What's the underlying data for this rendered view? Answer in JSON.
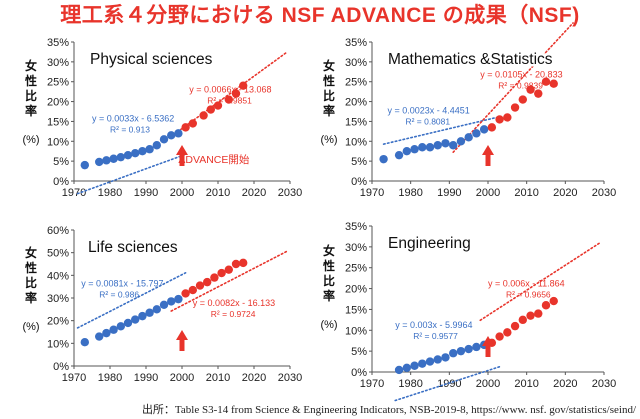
{
  "title": "理工系４分野における NSF ADVANCE の成果（NSF)",
  "source": "出所：Table S3-14 from Science & Engineering Indicators, NSB-2019-8, https://www. nsf. gov/statistics/seind/",
  "colors": {
    "title": "#e8342b",
    "blue": "#3a6fc4",
    "red": "#e8342b",
    "axis": "#555555"
  },
  "chart_data": [
    {
      "type": "scatter",
      "title": "Physical sciences",
      "ylabel": "女性比率 (%)",
      "xlim": [
        1970,
        2030
      ],
      "ylim": [
        0,
        35
      ],
      "xticks": [
        1970,
        1980,
        1990,
        2000,
        2010,
        2020,
        2030
      ],
      "yticks": [
        0,
        5,
        10,
        15,
        20,
        25,
        30,
        35
      ],
      "ytick_suffix": "%",
      "series": [
        {
          "color": "blue",
          "x": [
            1973,
            1977,
            1979,
            1981,
            1983,
            1985,
            1987,
            1989,
            1991,
            1993,
            1995,
            1997,
            1999
          ],
          "y": [
            4,
            4.8,
            5.2,
            5.6,
            6,
            6.5,
            7,
            7.5,
            8,
            9,
            10.5,
            11.5,
            12
          ]
        },
        {
          "color": "red",
          "x": [
            2001,
            2003,
            2006,
            2008,
            2010,
            2013,
            2015,
            2017
          ],
          "y": [
            13.5,
            14.5,
            16.5,
            18,
            19,
            20.5,
            22,
            24
          ]
        }
      ],
      "trendlines": [
        {
          "color": "blue",
          "slope": 0.0033,
          "intercept": -6.5362,
          "x": [
            1971,
            2001
          ]
        },
        {
          "color": "red",
          "slope": 0.0066,
          "intercept": -13.068,
          "x": [
            1997,
            2029
          ]
        }
      ],
      "equations": [
        {
          "color": "blue",
          "eq": "y = 0.0033x - 6.5362",
          "r2": "R² = 0.913",
          "at": [
            1975,
            15
          ]
        },
        {
          "color": "red",
          "eq": "y = 0.0066x - 13.068",
          "r2": "R² = 0.9851",
          "at": [
            2002,
            22.3
          ]
        }
      ],
      "arrow_year": 2000,
      "annotation": {
        "text": "ADVANCE開始",
        "at": [
          1999,
          4.5
        ]
      }
    },
    {
      "type": "scatter",
      "title": "Mathematics &Statistics",
      "ylabel": "女性比率 (%)",
      "xlim": [
        1970,
        2030
      ],
      "ylim": [
        0,
        35
      ],
      "xticks": [
        1970,
        1980,
        1990,
        2000,
        2010,
        2020,
        2030
      ],
      "yticks": [
        0,
        5,
        10,
        15,
        20,
        25,
        30,
        35
      ],
      "ytick_suffix": "%",
      "series": [
        {
          "color": "blue",
          "x": [
            1973,
            1977,
            1979,
            1981,
            1983,
            1985,
            1987,
            1989,
            1991,
            1993,
            1995,
            1997,
            1999
          ],
          "y": [
            5.5,
            6.5,
            7.5,
            8,
            8.5,
            8.5,
            9,
            9.5,
            9,
            10,
            11,
            12,
            13
          ]
        },
        {
          "color": "red",
          "x": [
            2001,
            2003,
            2005,
            2007,
            2009,
            2011,
            2013,
            2015,
            2017
          ],
          "y": [
            13.5,
            15.5,
            16,
            18.5,
            20.5,
            23,
            22,
            25,
            24.5
          ]
        }
      ],
      "trendlines": [
        {
          "color": "blue",
          "slope": 0.0023,
          "intercept": -4.4451,
          "x": [
            1973,
            2003
          ]
        },
        {
          "color": "red",
          "slope": 0.0105,
          "intercept": -20.833,
          "x": [
            1991,
            2022
          ]
        }
      ],
      "equations": [
        {
          "color": "blue",
          "eq": "y = 0.0023x - 4.4451",
          "r2": "R² = 0.8081",
          "at": [
            1974,
            17
          ]
        },
        {
          "color": "red",
          "eq": "y = 0.0105x - 20.833",
          "r2": "R² = 0.9839",
          "at": [
            1998,
            26
          ]
        }
      ],
      "arrow_year": 2000
    },
    {
      "type": "scatter",
      "title": "Life sciences",
      "ylabel": "女性比率 (%)",
      "xlim": [
        1970,
        2030
      ],
      "ylim": [
        0,
        60
      ],
      "xticks": [
        1970,
        1980,
        1990,
        2000,
        2010,
        2020,
        2030
      ],
      "yticks": [
        0,
        10,
        20,
        30,
        40,
        50,
        60
      ],
      "ytick_suffix": "%",
      "series": [
        {
          "color": "blue",
          "x": [
            1973,
            1977,
            1979,
            1981,
            1983,
            1985,
            1987,
            1989,
            1991,
            1993,
            1995,
            1997,
            1999
          ],
          "y": [
            10.5,
            13,
            14.5,
            16,
            17.5,
            19,
            20.5,
            22,
            23.5,
            25,
            27,
            28.5,
            29.5
          ]
        },
        {
          "color": "red",
          "x": [
            2001,
            2003,
            2005,
            2007,
            2009,
            2011,
            2013,
            2015,
            2017
          ],
          "y": [
            32,
            33.5,
            35.5,
            37,
            39,
            41,
            42.5,
            45,
            45.5
          ]
        }
      ],
      "trendlines": [
        {
          "color": "blue",
          "slope": 0.0081,
          "intercept": -15.797,
          "x": [
            1971,
            2001
          ]
        },
        {
          "color": "red",
          "slope": 0.0082,
          "intercept": -16.133,
          "x": [
            1997,
            2029
          ]
        }
      ],
      "equations": [
        {
          "color": "blue",
          "eq": "y = 0.0081x - 15.797",
          "r2": "R² = 0.986",
          "at": [
            1972,
            35
          ]
        },
        {
          "color": "red",
          "eq": "y = 0.0082x - 16.133",
          "r2": "R² = 0.9724",
          "at": [
            2003,
            26.5
          ]
        }
      ],
      "arrow_year": 2000
    },
    {
      "type": "scatter",
      "title": "Engineering",
      "ylabel": "女性比率 (%)",
      "xlim": [
        1970,
        2030
      ],
      "ylim": [
        0,
        35
      ],
      "xticks": [
        1970,
        1980,
        1990,
        2000,
        2010,
        2020,
        2030
      ],
      "yticks": [
        0,
        5,
        10,
        15,
        20,
        25,
        30,
        35
      ],
      "ytick_suffix": "%",
      "series": [
        {
          "color": "blue",
          "x": [
            1977,
            1979,
            1981,
            1983,
            1985,
            1987,
            1989,
            1991,
            1993,
            1995,
            1997,
            1999
          ],
          "y": [
            0.5,
            1,
            1.5,
            2,
            2.5,
            3,
            3.5,
            4.5,
            5,
            5.5,
            6,
            6.5
          ]
        },
        {
          "color": "red",
          "x": [
            2001,
            2003,
            2005,
            2007,
            2009,
            2011,
            2013,
            2015,
            2017
          ],
          "y": [
            7,
            8.5,
            9.5,
            11,
            12.5,
            13.5,
            14,
            16,
            17
          ]
        }
      ],
      "trendlines": [
        {
          "color": "blue",
          "slope": 0.003,
          "intercept": -5.9964,
          "x": [
            1976,
            2003
          ]
        },
        {
          "color": "red",
          "slope": 0.006,
          "intercept": -11.864,
          "x": [
            1998,
            2029
          ]
        }
      ],
      "equations": [
        {
          "color": "blue",
          "eq": "y = 0.003x - 5.9964",
          "r2": "R² = 0.9577",
          "at": [
            1976,
            10.5
          ]
        },
        {
          "color": "red",
          "eq": "y = 0.006x - 11.864",
          "r2": "R² = 0.9656",
          "at": [
            2000,
            20.5
          ]
        }
      ],
      "arrow_year": 2000
    }
  ]
}
